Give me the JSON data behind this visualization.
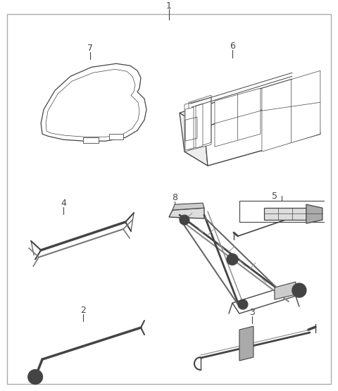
{
  "bg_color": "#ffffff",
  "border_color": "#aaaaaa",
  "line_color": "#444444",
  "label_color": "#000000",
  "fig_width": 4.8,
  "fig_height": 5.55,
  "dpi": 100
}
